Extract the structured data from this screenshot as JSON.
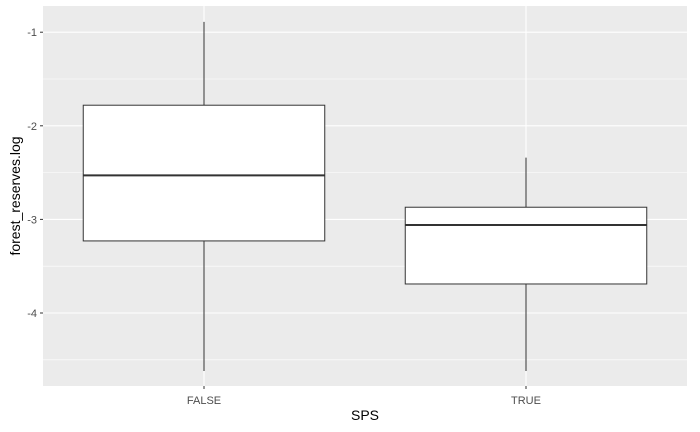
{
  "chart_data": {
    "type": "boxplot",
    "title": "",
    "xlabel": "SPS",
    "ylabel": "forest_reserves.log",
    "categories": [
      "FALSE",
      "TRUE"
    ],
    "boxes": [
      {
        "category": "FALSE",
        "whisker_low": -4.62,
        "q1": -3.23,
        "median": -2.53,
        "q3": -1.78,
        "whisker_high": -0.89
      },
      {
        "category": "TRUE",
        "whisker_low": -4.62,
        "q1": -3.69,
        "median": -3.06,
        "q3": -2.87,
        "whisker_high": -2.34
      }
    ],
    "yticks": [
      -1,
      -2,
      -3,
      -4
    ],
    "ytick_labels": [
      "-1",
      "-2",
      "-3",
      "-4"
    ],
    "ylim": [
      -4.78,
      -0.72
    ],
    "grid": true,
    "colors": {
      "panel_background": "#ebebeb",
      "grid_major": "#ffffff",
      "box_fill": "#ffffff",
      "box_stroke": "#333333",
      "tick_text": "#4d4d4d"
    }
  }
}
